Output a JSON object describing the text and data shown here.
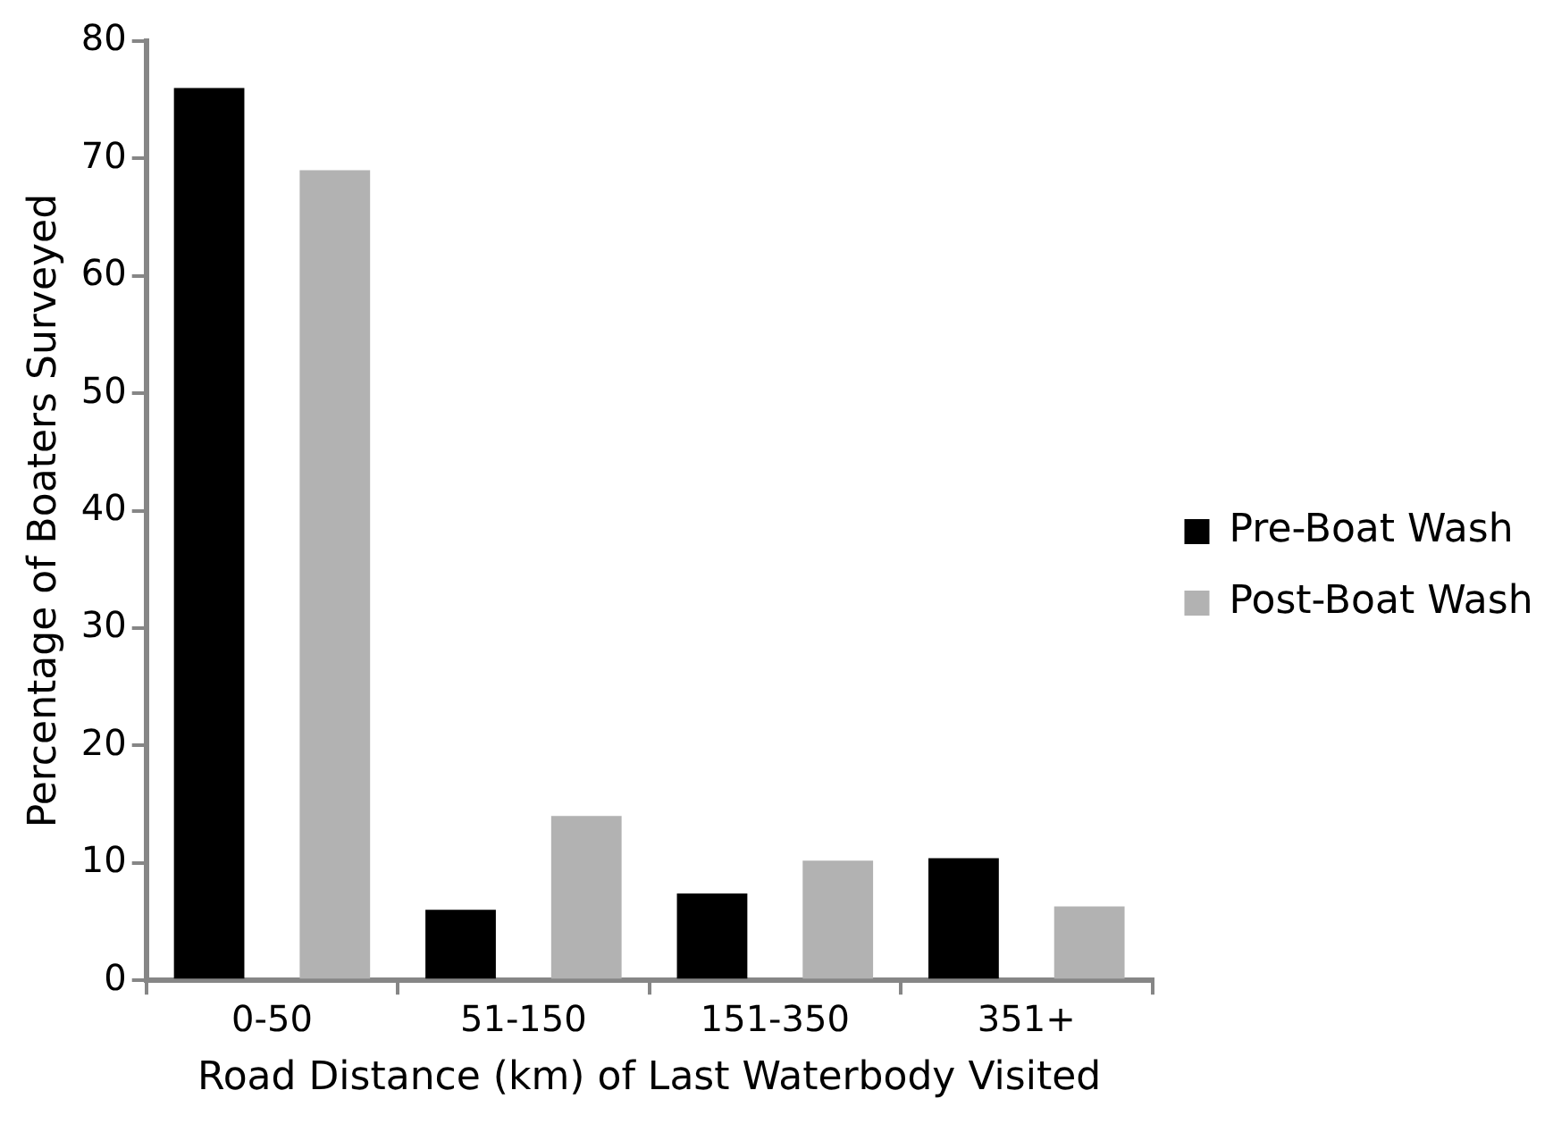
{
  "chart_data": {
    "type": "bar",
    "xlabel": "Road Distance (km) of Last Waterbody Visited",
    "ylabel": "Percentage of Boaters Surveyed",
    "categories": [
      "0-50",
      "51-150",
      "151-350",
      "351+"
    ],
    "series": [
      {
        "name": "Pre-Boat Wash",
        "color": "#000000",
        "values": [
          76,
          6,
          7.4,
          10.4
        ]
      },
      {
        "name": "Post-Boat Wash",
        "color": "#b2b2b2",
        "values": [
          69,
          14,
          10.2,
          6.3
        ]
      }
    ],
    "ylim": [
      0,
      80
    ],
    "yticks": [
      0,
      10,
      20,
      30,
      40,
      50,
      60,
      70,
      80
    ],
    "grid": false,
    "legend": "right"
  }
}
